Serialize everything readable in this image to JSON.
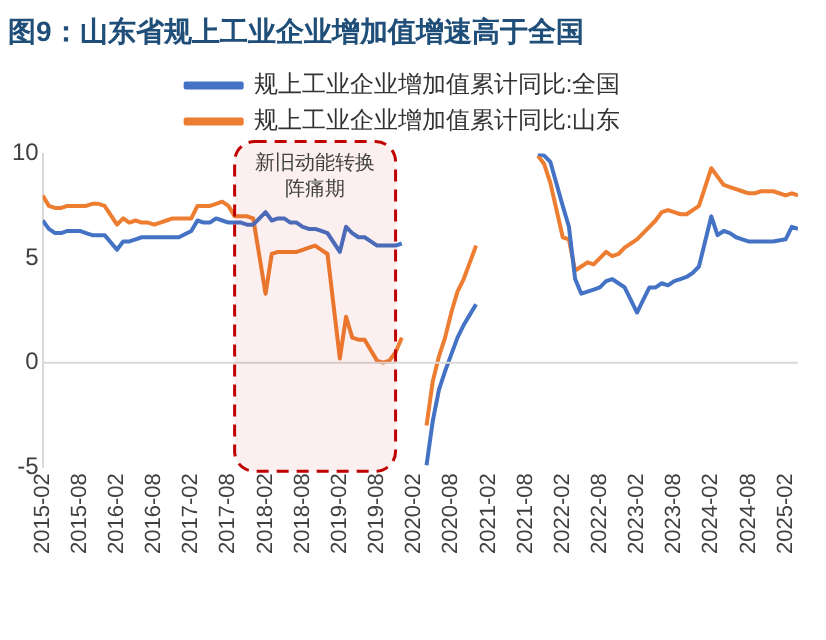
{
  "chart_data": {
    "type": "line",
    "title": "图9：山东省规上工业企业增加值增速高于全国",
    "x": [
      "2015-02",
      "2015-03",
      "2015-04",
      "2015-05",
      "2015-06",
      "2015-07",
      "2015-08",
      "2015-09",
      "2015-10",
      "2015-11",
      "2015-12",
      "2016-02",
      "2016-03",
      "2016-04",
      "2016-05",
      "2016-06",
      "2016-07",
      "2016-08",
      "2016-09",
      "2016-10",
      "2016-11",
      "2016-12",
      "2017-02",
      "2017-03",
      "2017-04",
      "2017-05",
      "2017-06",
      "2017-07",
      "2017-08",
      "2017-09",
      "2017-10",
      "2017-11",
      "2017-12",
      "2018-02",
      "2018-03",
      "2018-04",
      "2018-05",
      "2018-06",
      "2018-07",
      "2018-08",
      "2018-09",
      "2018-10",
      "2018-11",
      "2018-12",
      "2019-02",
      "2019-03",
      "2019-04",
      "2019-05",
      "2019-06",
      "2019-07",
      "2019-08",
      "2019-09",
      "2019-10",
      "2019-11",
      "2019-12",
      "2020-02",
      "2020-03",
      "2020-04",
      "2020-05",
      "2020-06",
      "2020-07",
      "2020-08",
      "2020-09",
      "2020-10",
      "2020-11",
      "2020-12",
      "2021-02",
      "2021-03",
      "2021-04",
      "2021-05",
      "2021-06",
      "2021-07",
      "2021-08",
      "2021-09",
      "2021-10",
      "2021-11",
      "2021-12",
      "2022-02",
      "2022-03",
      "2022-04",
      "2022-05",
      "2022-06",
      "2022-07",
      "2022-08",
      "2022-09",
      "2022-10",
      "2022-11",
      "2022-12",
      "2023-02",
      "2023-03",
      "2023-04",
      "2023-05",
      "2023-06",
      "2023-07",
      "2023-08",
      "2023-09",
      "2023-10",
      "2023-11",
      "2023-12",
      "2024-02",
      "2024-03",
      "2024-04",
      "2024-05",
      "2024-06",
      "2024-07",
      "2024-08",
      "2024-09",
      "2024-10",
      "2024-11",
      "2024-12",
      "2025-02",
      "2025-03",
      "2025-04"
    ],
    "series": [
      {
        "name": "规上工业企业增加值累计同比:全国",
        "color": "#4472c4",
        "values": [
          6.8,
          6.4,
          6.2,
          6.2,
          6.3,
          6.3,
          6.3,
          6.2,
          6.1,
          6.1,
          6.1,
          5.4,
          5.8,
          5.8,
          5.9,
          6.0,
          6.0,
          6.0,
          6.0,
          6.0,
          6.0,
          6.0,
          6.3,
          6.8,
          6.7,
          6.7,
          6.9,
          6.8,
          6.7,
          6.7,
          6.7,
          6.6,
          6.6,
          7.2,
          6.8,
          6.9,
          6.9,
          6.7,
          6.7,
          6.5,
          6.4,
          6.4,
          6.3,
          6.2,
          5.3,
          6.5,
          6.2,
          6.0,
          6.0,
          5.8,
          5.6,
          5.6,
          5.6,
          5.6,
          5.7,
          null,
          null,
          -4.9,
          -2.8,
          -1.3,
          -0.4,
          0.4,
          1.2,
          1.8,
          2.3,
          2.8,
          null,
          null,
          null,
          null,
          null,
          null,
          null,
          null,
          10.0,
          9.9,
          9.6,
          7.5,
          6.5,
          4.0,
          3.3,
          3.4,
          3.5,
          3.6,
          3.9,
          4.0,
          3.8,
          3.6,
          2.4,
          3.0,
          3.6,
          3.6,
          3.8,
          3.7,
          3.9,
          4.0,
          4.1,
          4.3,
          4.6,
          7.0,
          6.1,
          6.3,
          6.2,
          6.0,
          5.9,
          5.8,
          5.8,
          5.8,
          5.8,
          5.8,
          5.9,
          6.5,
          6.4
        ]
      },
      {
        "name": "规上工业企业增加值累计同比:山东",
        "color": "#ed7d31",
        "values": [
          8.0,
          7.5,
          7.4,
          7.4,
          7.5,
          7.5,
          7.5,
          7.5,
          7.6,
          7.6,
          7.5,
          6.6,
          6.9,
          6.7,
          6.8,
          6.7,
          6.7,
          6.6,
          6.7,
          6.8,
          6.9,
          6.9,
          6.9,
          7.5,
          7.5,
          7.5,
          7.6,
          7.7,
          7.5,
          7.0,
          7.0,
          7.0,
          6.9,
          3.3,
          5.2,
          5.3,
          5.3,
          5.3,
          5.3,
          5.4,
          5.5,
          5.6,
          5.4,
          5.2,
          0.2,
          2.2,
          1.2,
          1.1,
          1.1,
          0.6,
          0.1,
          0.0,
          0.1,
          0.5,
          1.2,
          null,
          null,
          -3.0,
          -0.9,
          0.3,
          1.2,
          2.4,
          3.4,
          4.0,
          4.8,
          5.6,
          null,
          null,
          null,
          null,
          null,
          null,
          null,
          null,
          9.9,
          9.5,
          8.6,
          6.0,
          5.9,
          4.4,
          4.6,
          4.8,
          4.7,
          5.0,
          5.3,
          5.1,
          5.2,
          5.5,
          5.9,
          6.2,
          6.5,
          6.8,
          7.2,
          7.3,
          7.2,
          7.1,
          7.1,
          7.3,
          7.5,
          9.3,
          8.9,
          8.5,
          8.4,
          8.3,
          8.2,
          8.1,
          8.1,
          8.2,
          8.2,
          8.2,
          8.0,
          8.1,
          8.0
        ]
      }
    ],
    "xlim": [
      "2015-02",
      "2025-04"
    ],
    "xticks": [
      "2015-02",
      "2015-08",
      "2016-02",
      "2016-08",
      "2017-02",
      "2017-08",
      "2018-02",
      "2018-08",
      "2019-02",
      "2019-08",
      "2020-02",
      "2020-08",
      "2021-02",
      "2021-08",
      "2022-02",
      "2022-08",
      "2023-02",
      "2023-08",
      "2024-02",
      "2024-08",
      "2025-02"
    ],
    "ylim": [
      -5,
      10
    ],
    "yticks": [
      -5,
      0,
      5,
      10
    ],
    "ref_lines": [
      {
        "axis": "y",
        "value": 0,
        "color": "#d9d9d9"
      }
    ],
    "bands": [
      {
        "axis": "x",
        "from": "2017-09",
        "to": "2019-11",
        "label": "新旧动能转换阵痛期",
        "color": "#c00000"
      }
    ],
    "grid": false,
    "legend": "top",
    "marker": "none",
    "line_style": "solid"
  }
}
